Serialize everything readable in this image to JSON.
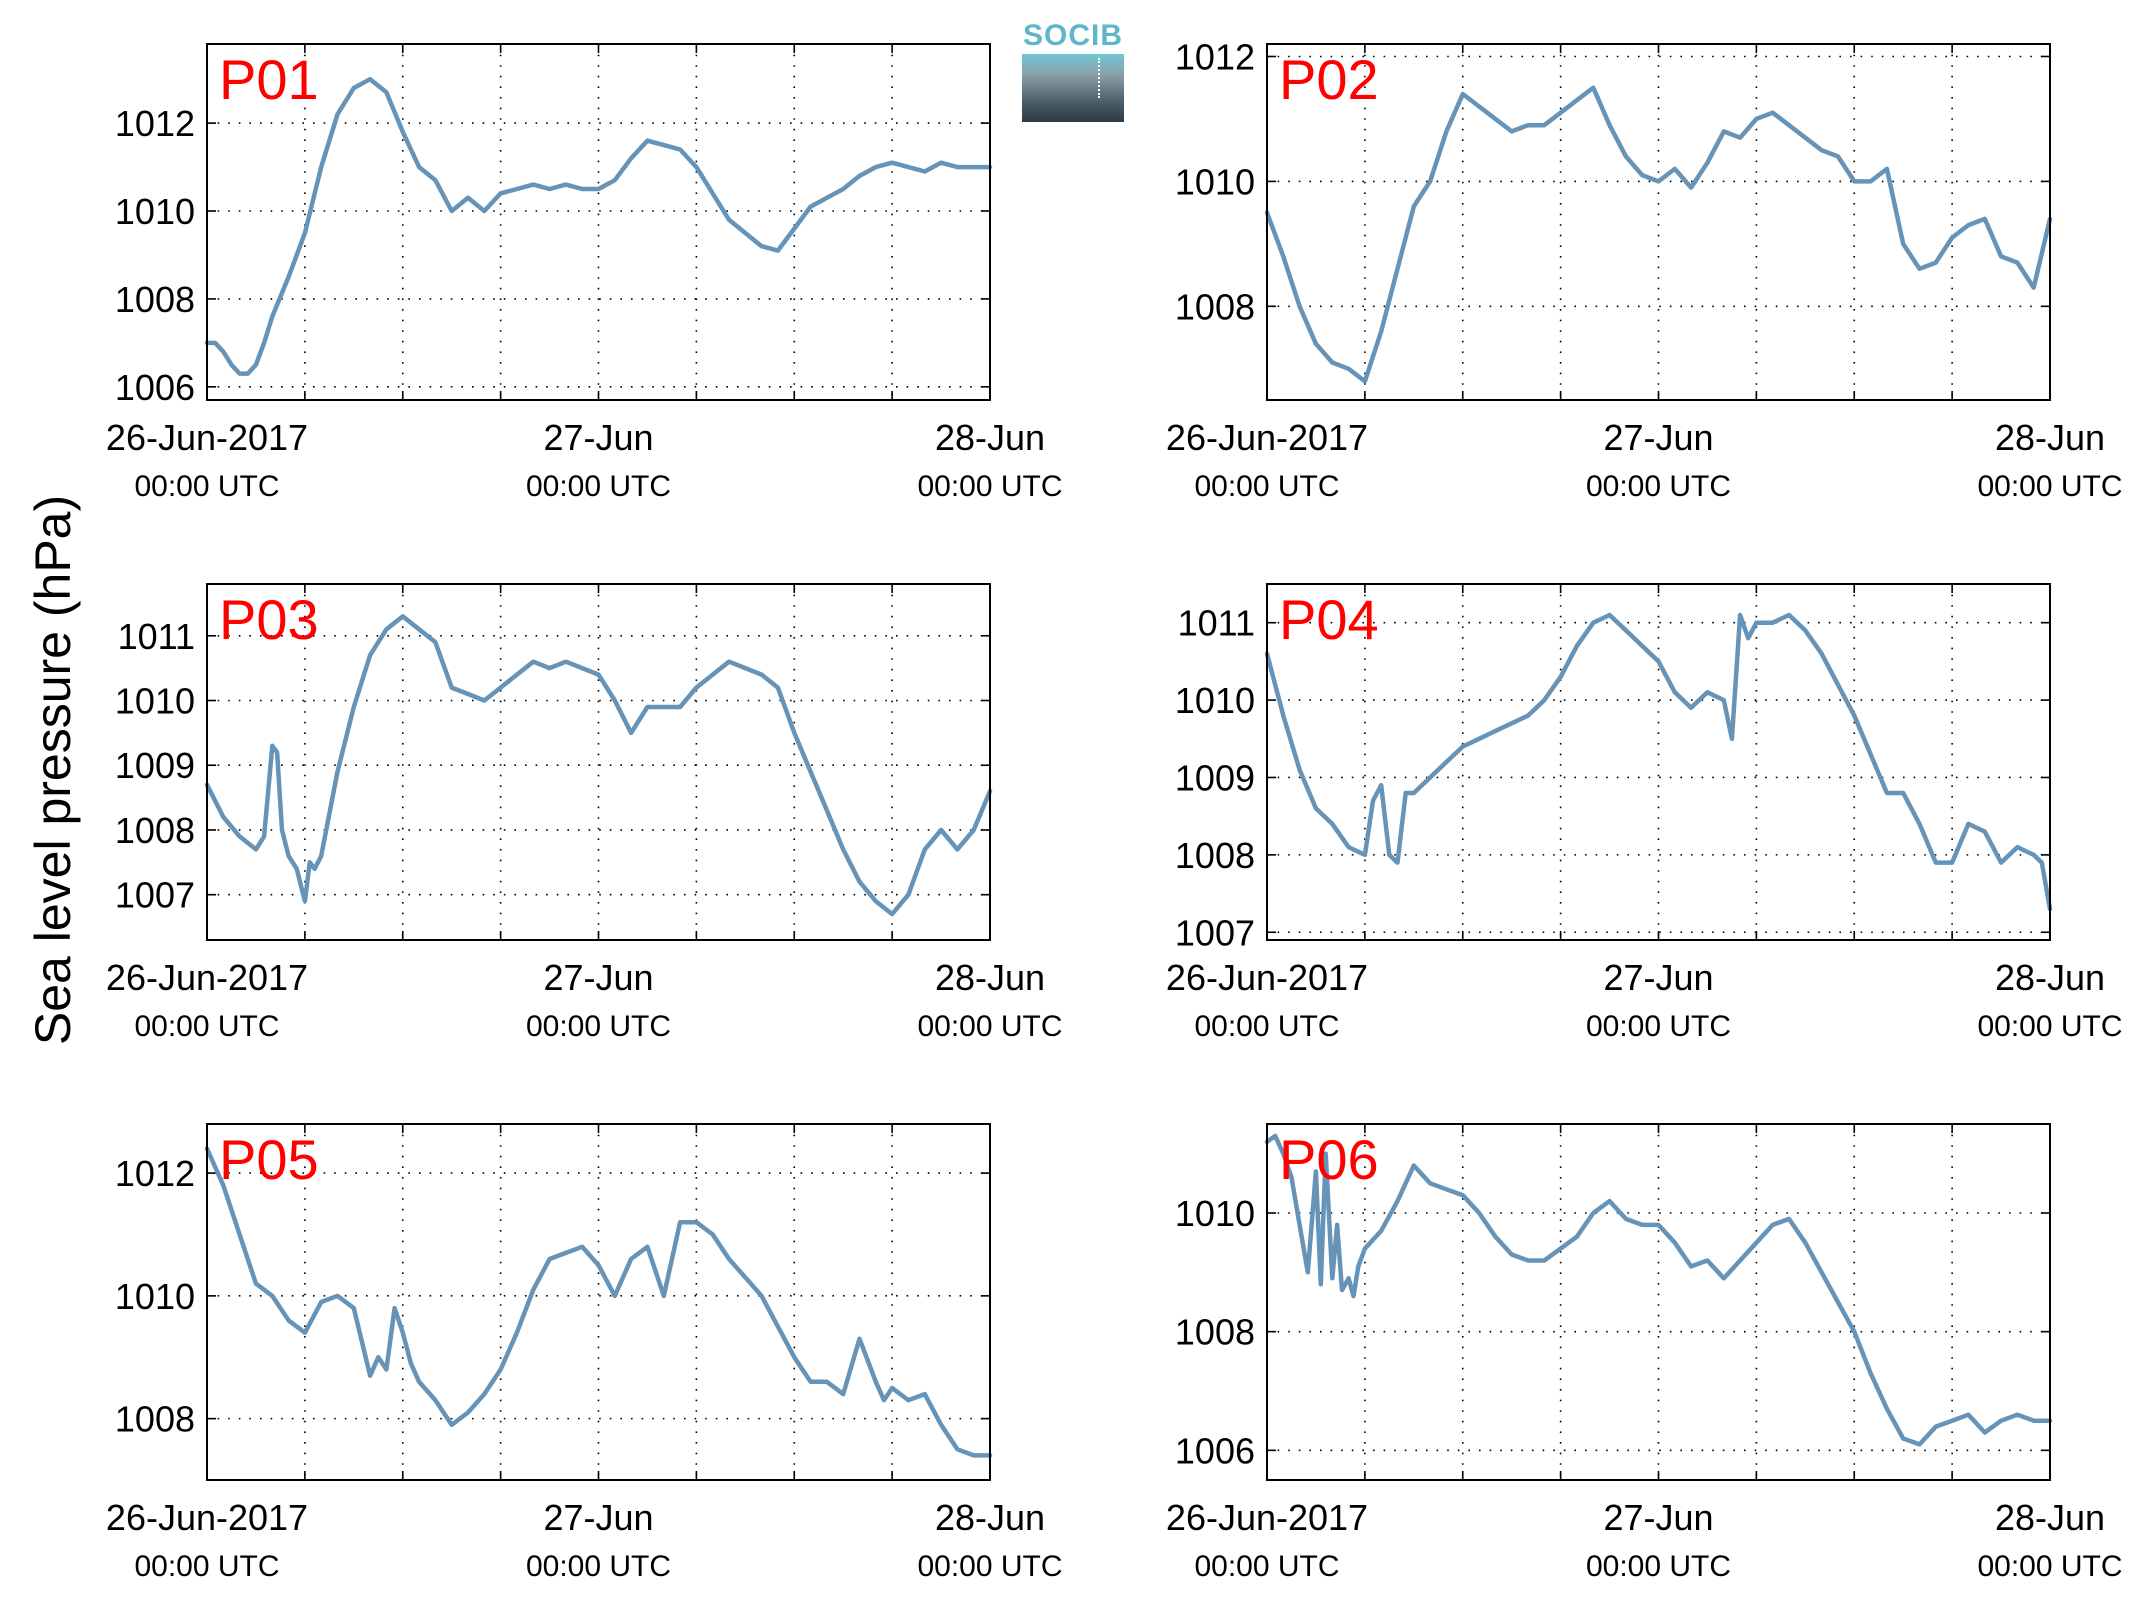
{
  "figure": {
    "ylabel": "Sea level pressure (hPa)",
    "logo_text": "SOCIB"
  },
  "chart_data": [
    {
      "type": "line",
      "title": "P01",
      "ylabel": "Sea level pressure (hPa)",
      "xlim": [
        0,
        48
      ],
      "ylim": [
        1005.7,
        1013.8
      ],
      "yticks": [
        1006,
        1008,
        1010,
        1012
      ],
      "xticks": [
        {
          "x": 0,
          "label": "26-Jun-2017",
          "sublabel": "00:00 UTC"
        },
        {
          "x": 24,
          "label": "27-Jun",
          "sublabel": "00:00 UTC"
        },
        {
          "x": 48,
          "label": "28-Jun",
          "sublabel": "00:00 UTC"
        }
      ],
      "grid": true,
      "color": "#6693b8",
      "series": [
        {
          "x": [
            0,
            0.5,
            1,
            1.5,
            2,
            2.5,
            3,
            3.5,
            4,
            5,
            6,
            7,
            8,
            9,
            10,
            11,
            12,
            13,
            14,
            15,
            16,
            17,
            18,
            19,
            20,
            21,
            22,
            23,
            24,
            25,
            26,
            27,
            28,
            29,
            30,
            31,
            32,
            33,
            34,
            35,
            36,
            37,
            38,
            39,
            40,
            41,
            42,
            43,
            44,
            45,
            46,
            47,
            48
          ],
          "y": [
            1007.0,
            1007.0,
            1006.8,
            1006.5,
            1006.3,
            1006.3,
            1006.5,
            1007.0,
            1007.6,
            1008.5,
            1009.5,
            1011.0,
            1012.2,
            1012.8,
            1013.0,
            1012.7,
            1011.8,
            1011.0,
            1010.7,
            1010.0,
            1010.3,
            1010.0,
            1010.4,
            1010.5,
            1010.6,
            1010.5,
            1010.6,
            1010.5,
            1010.5,
            1010.7,
            1011.2,
            1011.6,
            1011.5,
            1011.4,
            1011.0,
            1010.4,
            1009.8,
            1009.5,
            1009.2,
            1009.1,
            1009.6,
            1010.1,
            1010.3,
            1010.5,
            1010.8,
            1011.0,
            1011.1,
            1011.0,
            1010.9,
            1011.1,
            1011.0,
            1011.0,
            1011.0
          ]
        }
      ]
    },
    {
      "type": "line",
      "title": "P02",
      "ylabel": "Sea level pressure (hPa)",
      "xlim": [
        0,
        48
      ],
      "ylim": [
        1006.5,
        1012.2
      ],
      "yticks": [
        1008,
        1010,
        1012
      ],
      "xticks": [
        {
          "x": 0,
          "label": "26-Jun-2017",
          "sublabel": "00:00 UTC"
        },
        {
          "x": 24,
          "label": "27-Jun",
          "sublabel": "00:00 UTC"
        },
        {
          "x": 48,
          "label": "28-Jun",
          "sublabel": "00:00 UTC"
        }
      ],
      "grid": true,
      "color": "#6693b8",
      "series": [
        {
          "x": [
            0,
            1,
            2,
            3,
            4,
            5,
            6,
            7,
            8,
            9,
            10,
            11,
            12,
            13,
            14,
            15,
            16,
            17,
            18,
            19,
            20,
            21,
            22,
            23,
            24,
            25,
            26,
            27,
            28,
            29,
            30,
            31,
            32,
            33,
            34,
            35,
            36,
            37,
            38,
            39,
            40,
            41,
            42,
            43,
            44,
            45,
            46,
            47,
            48
          ],
          "y": [
            1009.5,
            1008.8,
            1008.0,
            1007.4,
            1007.1,
            1007.0,
            1006.8,
            1007.6,
            1008.6,
            1009.6,
            1010.0,
            1010.8,
            1011.4,
            1011.2,
            1011.0,
            1010.8,
            1010.9,
            1010.9,
            1011.1,
            1011.3,
            1011.5,
            1010.9,
            1010.4,
            1010.1,
            1010.0,
            1010.2,
            1009.9,
            1010.3,
            1010.8,
            1010.7,
            1011.0,
            1011.1,
            1010.9,
            1010.7,
            1010.5,
            1010.4,
            1010.0,
            1010.0,
            1010.2,
            1009.0,
            1008.6,
            1008.7,
            1009.1,
            1009.3,
            1009.4,
            1008.8,
            1008.7,
            1008.3,
            1009.4
          ]
        }
      ]
    },
    {
      "type": "line",
      "title": "P03",
      "ylabel": "Sea level pressure (hPa)",
      "xlim": [
        0,
        48
      ],
      "ylim": [
        1006.3,
        1011.8
      ],
      "yticks": [
        1007,
        1008,
        1009,
        1010,
        1011
      ],
      "xticks": [
        {
          "x": 0,
          "label": "26-Jun-2017",
          "sublabel": "00:00 UTC"
        },
        {
          "x": 24,
          "label": "27-Jun",
          "sublabel": "00:00 UTC"
        },
        {
          "x": 48,
          "label": "28-Jun",
          "sublabel": "00:00 UTC"
        }
      ],
      "grid": true,
      "color": "#6693b8",
      "series": [
        {
          "x": [
            0,
            1,
            2,
            3,
            3.5,
            4,
            4.3,
            4.6,
            5,
            5.5,
            6,
            6.3,
            6.6,
            7,
            8,
            9,
            10,
            11,
            12,
            13,
            14,
            15,
            16,
            17,
            18,
            19,
            20,
            21,
            22,
            23,
            24,
            25,
            26,
            27,
            28,
            29,
            30,
            31,
            32,
            33,
            34,
            35,
            36,
            37,
            38,
            39,
            40,
            41,
            42,
            43,
            44,
            45,
            46,
            47,
            48
          ],
          "y": [
            1008.7,
            1008.2,
            1007.9,
            1007.7,
            1007.9,
            1009.3,
            1009.2,
            1008.0,
            1007.6,
            1007.4,
            1006.9,
            1007.5,
            1007.4,
            1007.6,
            1008.9,
            1009.9,
            1010.7,
            1011.1,
            1011.3,
            1011.1,
            1010.9,
            1010.2,
            1010.1,
            1010.0,
            1010.2,
            1010.4,
            1010.6,
            1010.5,
            1010.6,
            1010.5,
            1010.4,
            1010.0,
            1009.5,
            1009.9,
            1009.9,
            1009.9,
            1010.2,
            1010.4,
            1010.6,
            1010.5,
            1010.4,
            1010.2,
            1009.5,
            1008.9,
            1008.3,
            1007.7,
            1007.2,
            1006.9,
            1006.7,
            1007.0,
            1007.7,
            1008.0,
            1007.7,
            1008.0,
            1008.6
          ]
        }
      ]
    },
    {
      "type": "line",
      "title": "P04",
      "ylabel": "Sea level pressure (hPa)",
      "xlim": [
        0,
        48
      ],
      "ylim": [
        1006.9,
        1011.5
      ],
      "yticks": [
        1007,
        1008,
        1009,
        1010,
        1011
      ],
      "xticks": [
        {
          "x": 0,
          "label": "26-Jun-2017",
          "sublabel": "00:00 UTC"
        },
        {
          "x": 24,
          "label": "27-Jun",
          "sublabel": "00:00 UTC"
        },
        {
          "x": 48,
          "label": "28-Jun",
          "sublabel": "00:00 UTC"
        }
      ],
      "grid": true,
      "color": "#6693b8",
      "series": [
        {
          "x": [
            0,
            1,
            2,
            3,
            4,
            5,
            6,
            6.5,
            7,
            7.5,
            8,
            8.5,
            9,
            10,
            11,
            12,
            13,
            14,
            15,
            16,
            17,
            18,
            19,
            20,
            21,
            22,
            23,
            24,
            25,
            26,
            27,
            28,
            28.5,
            29,
            29.5,
            30,
            31,
            32,
            33,
            34,
            35,
            36,
            37,
            38,
            39,
            40,
            41,
            42,
            43,
            44,
            45,
            46,
            47,
            47.5,
            48
          ],
          "y": [
            1010.6,
            1009.8,
            1009.1,
            1008.6,
            1008.4,
            1008.1,
            1008.0,
            1008.7,
            1008.9,
            1008.0,
            1007.9,
            1008.8,
            1008.8,
            1009.0,
            1009.2,
            1009.4,
            1009.5,
            1009.6,
            1009.7,
            1009.8,
            1010.0,
            1010.3,
            1010.7,
            1011.0,
            1011.1,
            1010.9,
            1010.7,
            1010.5,
            1010.1,
            1009.9,
            1010.1,
            1010.0,
            1009.5,
            1011.1,
            1010.8,
            1011.0,
            1011.0,
            1011.1,
            1010.9,
            1010.6,
            1010.2,
            1009.8,
            1009.3,
            1008.8,
            1008.8,
            1008.4,
            1007.9,
            1007.9,
            1008.4,
            1008.3,
            1007.9,
            1008.1,
            1008.0,
            1007.9,
            1007.3
          ]
        }
      ]
    },
    {
      "type": "line",
      "title": "P05",
      "ylabel": "Sea level pressure (hPa)",
      "xlim": [
        0,
        48
      ],
      "ylim": [
        1007.0,
        1012.8
      ],
      "yticks": [
        1008,
        1010,
        1012
      ],
      "xticks": [
        {
          "x": 0,
          "label": "26-Jun-2017",
          "sublabel": "00:00 UTC"
        },
        {
          "x": 24,
          "label": "27-Jun",
          "sublabel": "00:00 UTC"
        },
        {
          "x": 48,
          "label": "28-Jun",
          "sublabel": "00:00 UTC"
        }
      ],
      "grid": true,
      "color": "#6693b8",
      "series": [
        {
          "x": [
            0,
            1,
            2,
            3,
            4,
            5,
            6,
            7,
            8,
            9,
            10,
            10.5,
            11,
            11.5,
            12,
            12.5,
            13,
            14,
            15,
            16,
            17,
            18,
            19,
            20,
            21,
            22,
            23,
            24,
            25,
            26,
            27,
            28,
            29,
            30,
            31,
            32,
            33,
            34,
            35,
            36,
            37,
            38,
            39,
            40,
            41,
            41.5,
            42,
            43,
            44,
            45,
            46,
            47,
            48
          ],
          "y": [
            1012.4,
            1011.8,
            1011.0,
            1010.2,
            1010.0,
            1009.6,
            1009.4,
            1009.9,
            1010.0,
            1009.8,
            1008.7,
            1009.0,
            1008.8,
            1009.8,
            1009.4,
            1008.9,
            1008.6,
            1008.3,
            1007.9,
            1008.1,
            1008.4,
            1008.8,
            1009.4,
            1010.1,
            1010.6,
            1010.7,
            1010.8,
            1010.5,
            1010.0,
            1010.6,
            1010.8,
            1010.0,
            1011.2,
            1011.2,
            1011.0,
            1010.6,
            1010.3,
            1010.0,
            1009.5,
            1009.0,
            1008.6,
            1008.6,
            1008.4,
            1009.3,
            1008.6,
            1008.3,
            1008.5,
            1008.3,
            1008.4,
            1007.9,
            1007.5,
            1007.4,
            1007.4
          ]
        }
      ]
    },
    {
      "type": "line",
      "title": "P06",
      "ylabel": "Sea level pressure (hPa)",
      "xlim": [
        0,
        48
      ],
      "ylim": [
        1005.5,
        1011.5
      ],
      "yticks": [
        1006,
        1008,
        1010
      ],
      "xticks": [
        {
          "x": 0,
          "label": "26-Jun-2017",
          "sublabel": "00:00 UTC"
        },
        {
          "x": 24,
          "label": "27-Jun",
          "sublabel": "00:00 UTC"
        },
        {
          "x": 48,
          "label": "28-Jun",
          "sublabel": "00:00 UTC"
        }
      ],
      "grid": true,
      "color": "#6693b8",
      "series": [
        {
          "x": [
            0,
            0.5,
            1,
            1.5,
            2,
            2.5,
            3,
            3.3,
            3.6,
            4,
            4.3,
            4.6,
            5,
            5.3,
            5.6,
            6,
            7,
            8,
            9,
            10,
            11,
            12,
            13,
            14,
            15,
            16,
            17,
            18,
            19,
            20,
            21,
            22,
            23,
            24,
            25,
            26,
            27,
            28,
            29,
            30,
            31,
            32,
            33,
            34,
            35,
            36,
            37,
            38,
            39,
            40,
            41,
            42,
            43,
            44,
            45,
            46,
            47,
            48
          ],
          "y": [
            1011.2,
            1011.3,
            1011.0,
            1010.6,
            1009.8,
            1009.0,
            1010.7,
            1008.8,
            1011.0,
            1008.9,
            1009.8,
            1008.7,
            1008.9,
            1008.6,
            1009.1,
            1009.4,
            1009.7,
            1010.2,
            1010.8,
            1010.5,
            1010.4,
            1010.3,
            1010.0,
            1009.6,
            1009.3,
            1009.2,
            1009.2,
            1009.4,
            1009.6,
            1010.0,
            1010.2,
            1009.9,
            1009.8,
            1009.8,
            1009.5,
            1009.1,
            1009.2,
            1008.9,
            1009.2,
            1009.5,
            1009.8,
            1009.9,
            1009.5,
            1009.0,
            1008.5,
            1008.0,
            1007.3,
            1006.7,
            1006.2,
            1006.1,
            1006.4,
            1006.5,
            1006.6,
            1006.3,
            1006.5,
            1006.6,
            1006.5,
            1006.5
          ]
        }
      ]
    }
  ]
}
